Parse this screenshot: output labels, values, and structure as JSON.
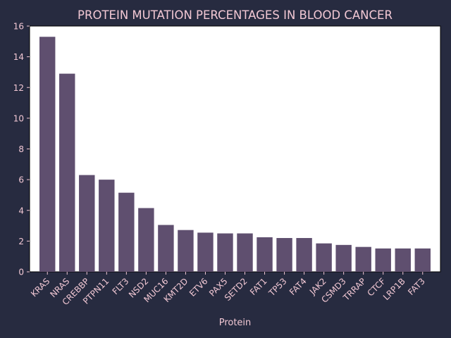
{
  "chart_data": {
    "type": "bar",
    "title": "PROTEIN MUTATION PERCENTAGES IN BLOOD CANCER",
    "xlabel": "Protein",
    "ylabel": "",
    "categories": [
      "KRAS",
      "NRAS",
      "CREBBP",
      "PTPN11",
      "FLT3",
      "NSD2",
      "MUC16",
      "KMT2D",
      "ETV6",
      "PAX5",
      "SETD2",
      "FAT1",
      "TP53",
      "FAT4",
      "JAK2",
      "CSMD3",
      "TRRAP",
      "CTCF",
      "LRP1B",
      "FAT3"
    ],
    "values": [
      15.3,
      12.9,
      6.3,
      6.0,
      5.15,
      4.15,
      3.05,
      2.72,
      2.55,
      2.5,
      2.5,
      2.25,
      2.2,
      2.2,
      1.85,
      1.75,
      1.62,
      1.52,
      1.52,
      1.52
    ],
    "ylim": [
      0,
      16
    ],
    "yticks": [
      0,
      2,
      4,
      6,
      8,
      10,
      12,
      14,
      16
    ],
    "grid": false,
    "colors": {
      "background": "#272b40",
      "plot_area": "#ffffff",
      "bar": "#5f4f6f",
      "text": "#f2c8d4",
      "axes": "#000000"
    }
  }
}
